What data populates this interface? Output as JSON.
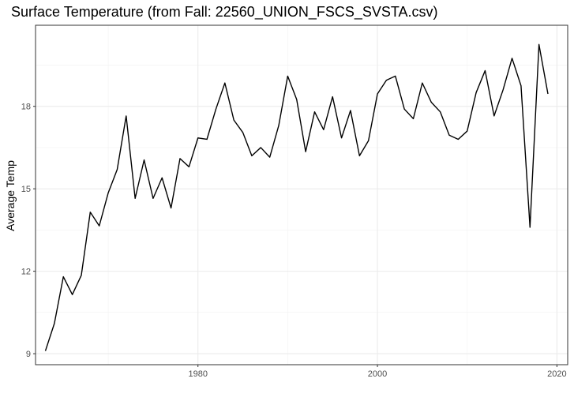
{
  "chart_data": {
    "type": "line",
    "title": "Surface Temperature (from Fall: 22560_UNION_FSCS_SVSTA.csv)",
    "xlabel": "",
    "ylabel": "Average Temp",
    "xlim": [
      1961.9,
      2021.2
    ],
    "ylim": [
      8.6,
      20.95
    ],
    "x_ticks": [
      1980,
      2000,
      2020
    ],
    "x_minor_ticks": [
      1970,
      1990,
      2010
    ],
    "y_ticks": [
      9,
      12,
      15,
      18
    ],
    "y_minor_ticks": [
      10.5,
      13.5,
      16.5,
      19.5
    ],
    "grid": true,
    "line_color": "#000000",
    "series": [
      {
        "x": [
          1963,
          1964,
          1965,
          1966,
          1967,
          1968,
          1969,
          1970,
          1971,
          1972,
          1973,
          1974,
          1975,
          1976,
          1977,
          1978,
          1979,
          1980,
          1981,
          1982,
          1983,
          1984,
          1985,
          1986,
          1987,
          1988,
          1989,
          1990,
          1991,
          1992,
          1993,
          1994,
          1995,
          1996,
          1997,
          1998,
          1999,
          2000,
          2001,
          2002,
          2003,
          2004,
          2005,
          2006,
          2007,
          2008,
          2009,
          2010,
          2011,
          2012,
          2013,
          2014,
          2015,
          2016,
          2017,
          2018,
          2019
        ],
        "y": [
          9.1,
          10.1,
          11.8,
          11.15,
          11.85,
          14.15,
          13.65,
          14.85,
          15.7,
          17.65,
          14.65,
          16.05,
          14.65,
          15.4,
          14.3,
          16.1,
          15.8,
          16.85,
          16.8,
          17.9,
          18.85,
          17.5,
          17.05,
          16.2,
          16.5,
          16.15,
          17.3,
          19.1,
          18.25,
          16.35,
          17.8,
          17.15,
          18.35,
          16.85,
          17.85,
          16.2,
          16.75,
          18.45,
          18.95,
          19.1,
          17.9,
          17.55,
          18.85,
          18.15,
          17.8,
          16.95,
          16.8,
          17.1,
          18.5,
          19.3,
          17.65,
          18.6,
          19.75,
          18.75,
          13.6,
          20.25,
          18.45
        ]
      }
    ]
  }
}
